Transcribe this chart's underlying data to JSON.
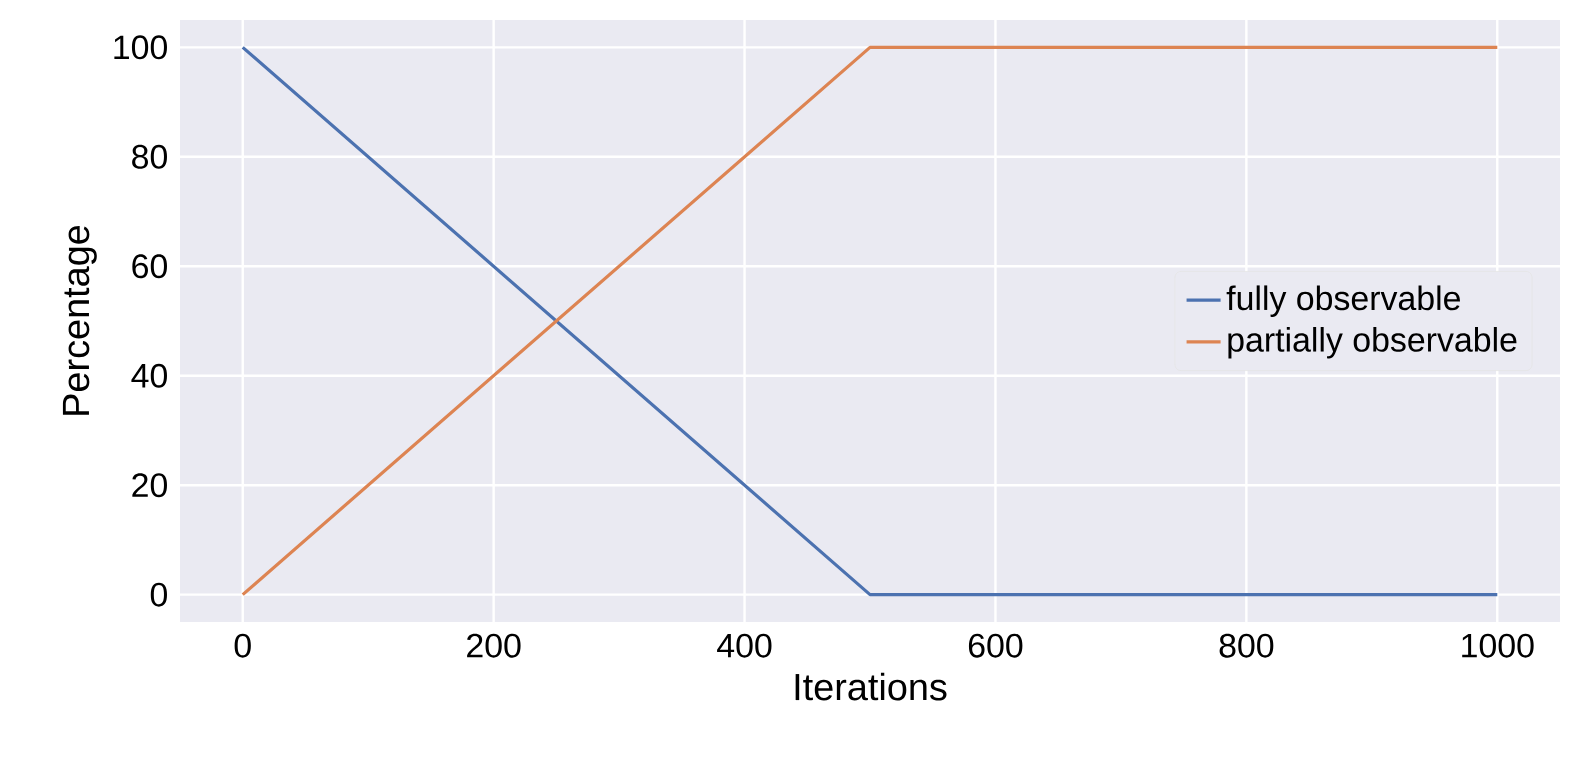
{
  "chart_data": {
    "type": "line",
    "xlabel": "Iterations",
    "ylabel": "Percentage",
    "xlim": [
      -50,
      1050
    ],
    "ylim": [
      -5,
      105
    ],
    "xticks": [
      0,
      200,
      400,
      600,
      800,
      1000
    ],
    "yticks": [
      0,
      20,
      40,
      60,
      80,
      100
    ],
    "grid": true,
    "legend": "right",
    "line_style": "solid",
    "marker": "none",
    "series": [
      {
        "name": "fully observable",
        "color": "#4c72b0",
        "x": [
          0,
          500,
          1000
        ],
        "values": [
          100,
          0,
          0
        ]
      },
      {
        "name": "partially observable",
        "color": "#dd8452",
        "x": [
          0,
          500,
          1000
        ],
        "values": [
          0,
          100,
          100
        ]
      }
    ]
  }
}
